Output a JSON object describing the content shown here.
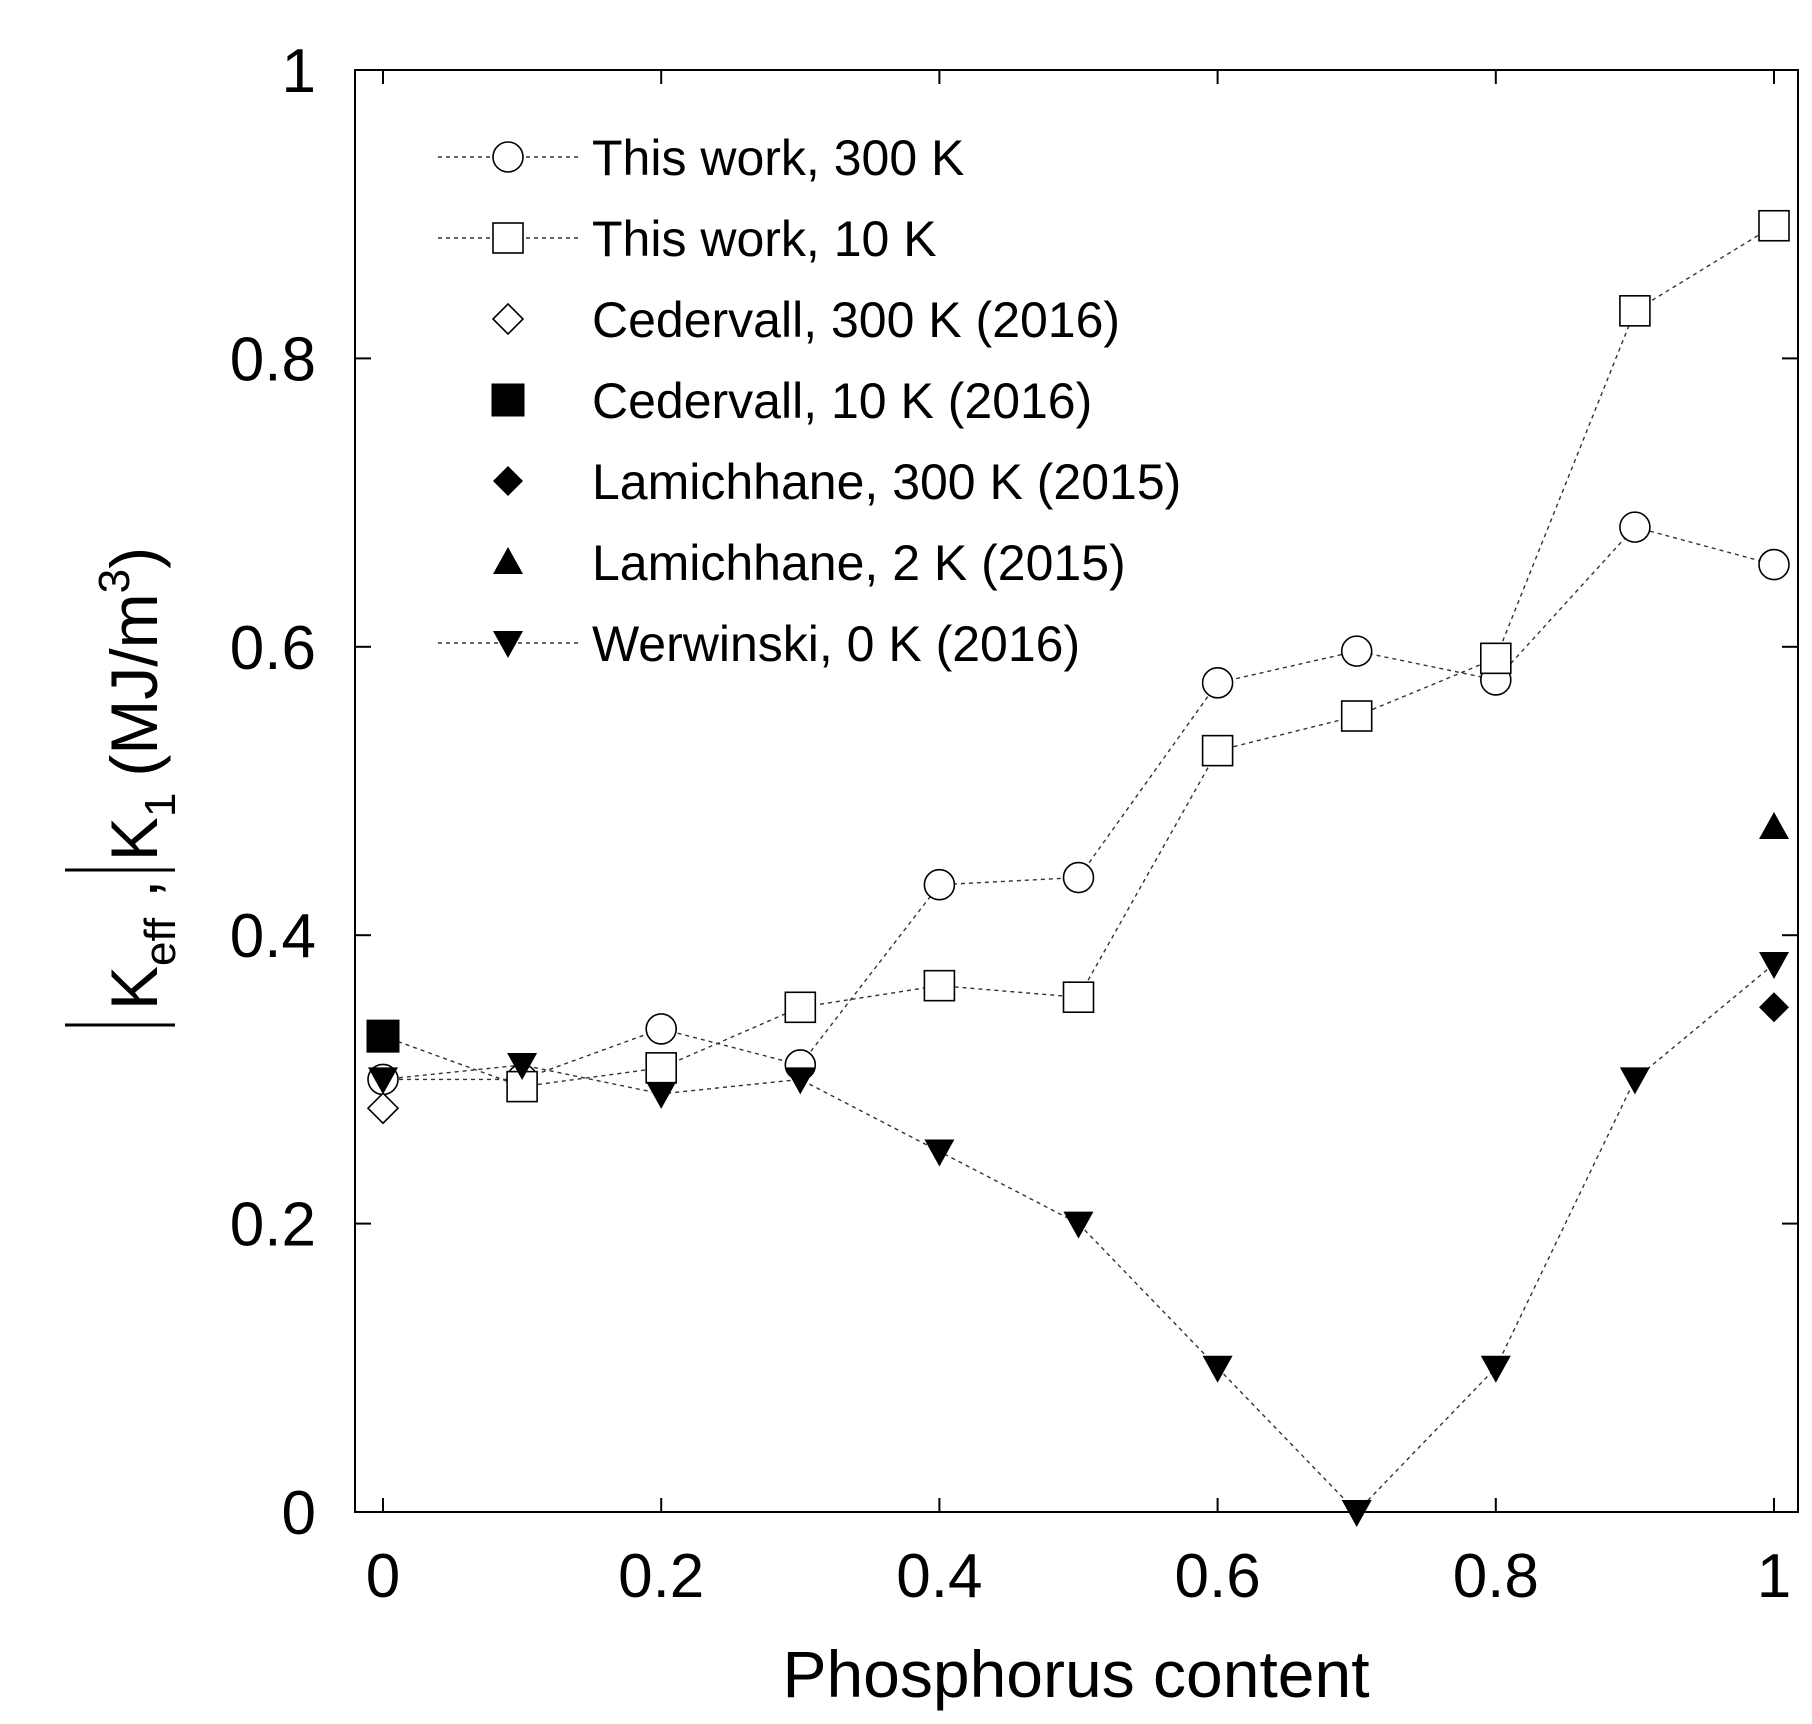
{
  "chart_data": {
    "type": "scatter",
    "title": "",
    "xlabel": "Phosphorus content",
    "ylabel_parts": {
      "main": "K",
      "sub_eff": "eff",
      "sep": ", K",
      "sub_1": "1",
      "units": "(MJ/m",
      "sup_3": "3",
      "close": ")"
    },
    "xlim": [
      0,
      1
    ],
    "ylim": [
      0,
      1
    ],
    "xticks": [
      "0",
      "0.2",
      "0.4",
      "0.6",
      "0.8",
      "1"
    ],
    "xtick_values": [
      0,
      0.2,
      0.4,
      0.6,
      0.8,
      1
    ],
    "yticks": [
      "0",
      "0.2",
      "0.4",
      "0.6",
      "0.8",
      "1"
    ],
    "ytick_values": [
      0,
      0.2,
      0.4,
      0.6,
      0.8,
      1
    ],
    "legend_position": "top-left",
    "series": [
      {
        "name": "This work, 300 K",
        "marker": "circle-open",
        "line": "dotted",
        "x": [
          0,
          0.1,
          0.2,
          0.3,
          0.4,
          0.5,
          0.6,
          0.7,
          0.8,
          0.9,
          1.0
        ],
        "y": [
          0.3,
          0.3,
          0.335,
          0.31,
          0.435,
          0.44,
          0.575,
          0.597,
          0.577,
          0.683,
          0.657
        ]
      },
      {
        "name": "This work, 10 K",
        "marker": "square-open",
        "line": "dotted",
        "x": [
          0.1,
          0.2,
          0.3,
          0.4,
          0.5,
          0.6,
          0.7,
          0.8,
          0.9,
          1.0
        ],
        "y": [
          0.295,
          0.308,
          0.35,
          0.365,
          0.357,
          0.528,
          0.552,
          0.592,
          0.833,
          0.892
        ]
      },
      {
        "name": "Cedervall, 300 K (2016)",
        "marker": "diamond-open",
        "line": "none",
        "x": [
          0
        ],
        "y": [
          0.28
        ]
      },
      {
        "name": "Cedervall, 10 K (2016)",
        "marker": "square-filled",
        "line": "none",
        "x": [
          0
        ],
        "y": [
          0.33
        ]
      },
      {
        "name": "Lamichhane, 300 K (2015)",
        "marker": "diamond-filled",
        "line": "none",
        "x": [
          1.0
        ],
        "y": [
          0.35
        ]
      },
      {
        "name": "Lamichhane, 2 K (2015)",
        "marker": "triangle-up-filled",
        "line": "none",
        "x": [
          1.0
        ],
        "y": [
          0.475
        ]
      },
      {
        "name": "Werwinski, 0 K (2016)",
        "marker": "triangle-down-filled",
        "line": "dotted",
        "x": [
          0,
          0.1,
          0.2,
          0.3,
          0.4,
          0.5,
          0.6,
          0.7,
          0.8,
          0.9,
          1.0
        ],
        "y": [
          0.3,
          0.31,
          0.29,
          0.3,
          0.25,
          0.2,
          0.1,
          0.0,
          0.1,
          0.3,
          0.38
        ]
      }
    ],
    "extra_lines": [
      {
        "note": "dotted connector from Cedervall 10 K to This work 10 K",
        "x": [
          0,
          0.1
        ],
        "y": [
          0.33,
          0.295
        ]
      }
    ]
  }
}
